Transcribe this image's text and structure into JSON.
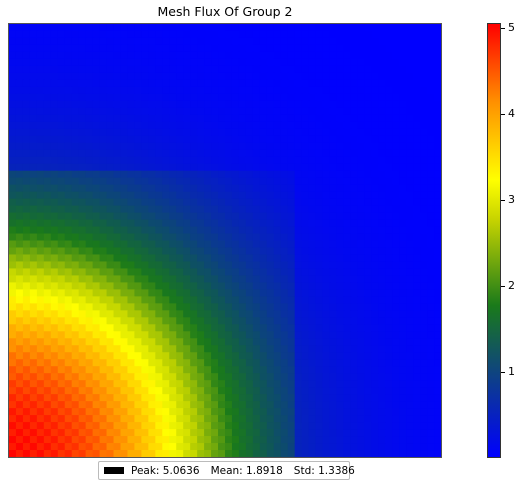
{
  "chart_data": {
    "type": "heatmap",
    "title": "Mesh Flux Of Group 2",
    "colormap": [
      "#0000ff",
      "#1a7a1a",
      "#ffff00",
      "#ff0000"
    ],
    "colorbar": {
      "range": [
        0,
        5.0636
      ],
      "ticks": [
        1,
        2,
        3,
        4,
        5
      ],
      "tick_labels": [
        "1",
        "2",
        "3",
        "4",
        "5"
      ]
    },
    "legend": {
      "peak": "Peak: 5.0636",
      "mean": "Mean: 1.8918",
      "std": "Std: 1.3386",
      "placement": "below"
    }
  }
}
